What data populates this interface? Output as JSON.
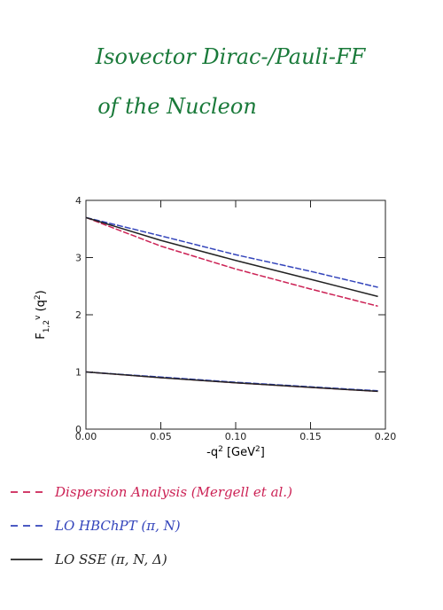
{
  "title_lines": [
    "Isovector Dirac-/Pauli-FF",
    "of the Nucleon"
  ],
  "chart_data": {
    "type": "line",
    "x_label_parts": [
      {
        "text": "-q",
        "style": "normal"
      },
      {
        "text": "2",
        "style": "sup"
      },
      {
        "text": " [GeV",
        "style": "normal"
      },
      {
        "text": "2",
        "style": "sup"
      },
      {
        "text": "]",
        "style": "normal"
      }
    ],
    "y_label_parts": [
      {
        "text": "F",
        "style": "normal"
      },
      {
        "text": "1,2",
        "style": "sub"
      },
      {
        "text": "v",
        "style": "sup"
      },
      {
        "text": " (q",
        "style": "normal"
      },
      {
        "text": "2",
        "style": "sup"
      },
      {
        "text": ")",
        "style": "normal"
      }
    ],
    "x": [
      0,
      0.05,
      0.1,
      0.15,
      0.195
    ],
    "xlim": [
      0,
      0.2
    ],
    "ylim": [
      0,
      4
    ],
    "xticks": [
      {
        "value": 0,
        "label": "0.00"
      },
      {
        "value": 0.05,
        "label": "0.05"
      },
      {
        "value": 0.1,
        "label": "0.10"
      },
      {
        "value": 0.15,
        "label": "0.15"
      },
      {
        "value": 0.2,
        "label": "0.20"
      }
    ],
    "yticks": [
      0,
      1,
      2,
      3,
      4
    ],
    "series": [
      {
        "name": "Dispersion Analysis (Mergell et al.)",
        "color": "#cc2255",
        "dashed": true,
        "curves": [
          {
            "values": [
              3.7,
              3.2,
              2.8,
              2.45,
              2.15
            ]
          },
          {
            "values": [
              1.0,
              0.9,
              0.81,
              0.73,
              0.66
            ]
          }
        ]
      },
      {
        "name": "LO HBChPT (π, N)",
        "color": "#3344bb",
        "dashed": true,
        "curves": [
          {
            "values": [
              3.7,
              3.38,
              3.05,
              2.76,
              2.48
            ]
          },
          {
            "values": [
              1.0,
              0.91,
              0.82,
              0.74,
              0.67
            ]
          }
        ]
      },
      {
        "name": "LO SSE (π, N, Δ)",
        "color": "#222222",
        "dashed": false,
        "curves": [
          {
            "values": [
              3.7,
              3.3,
              2.95,
              2.62,
              2.32
            ]
          },
          {
            "values": [
              1.0,
              0.9,
              0.81,
              0.73,
              0.66
            ]
          }
        ]
      }
    ]
  }
}
